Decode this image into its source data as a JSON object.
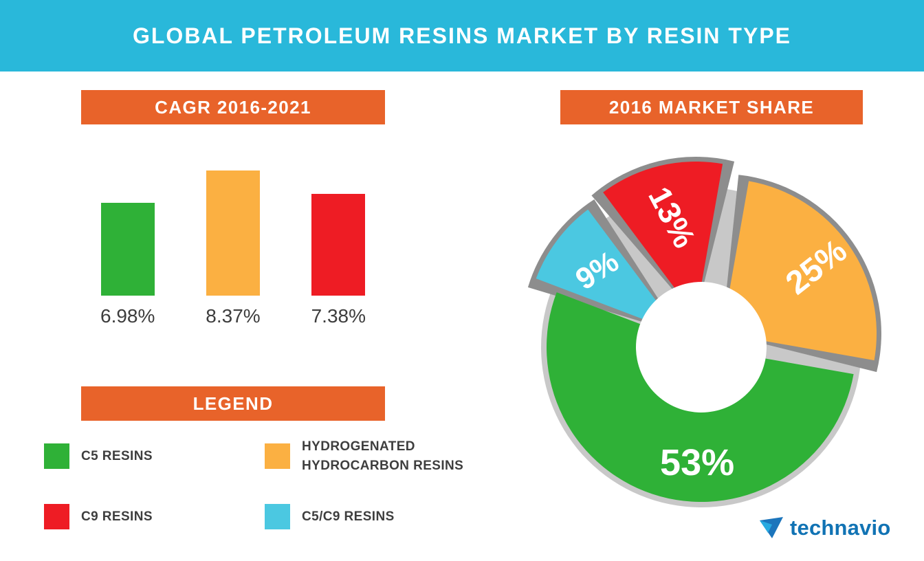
{
  "header": {
    "title": "GLOBAL PETROLEUM RESINS MARKET BY RESIN TYPE",
    "background": "#29b8da"
  },
  "theme": {
    "banner_background": "#e8632a",
    "header_background": "#29b8da"
  },
  "panels": {
    "cagr": {
      "title": "CAGR 2016-2021"
    },
    "market_share": {
      "title": "2016 MARKET SHARE"
    },
    "legend": {
      "title": "LEGEND"
    }
  },
  "legend": {
    "items": [
      {
        "label": "C5 RESINS",
        "color": "#2fb137"
      },
      {
        "label": "HYDROGENATED HYDROCARBON RESINS",
        "color": "#fbb042"
      },
      {
        "label": "C9 RESINS",
        "color": "#ee1c24"
      },
      {
        "label": "C5/C9 RESINS",
        "color": "#4bc8e1"
      }
    ]
  },
  "chart_data": [
    {
      "type": "bar",
      "title": "CAGR 2016-2021",
      "categories": [
        "C5 RESINS",
        "HYDROGENATED HYDROCARBON RESINS",
        "C9 RESINS"
      ],
      "values": [
        6.98,
        8.37,
        7.38
      ],
      "value_labels": [
        "6.98%",
        "8.37%",
        "7.38%"
      ],
      "colors": [
        "#2fb137",
        "#fbb042",
        "#ee1c24"
      ],
      "ylim": [
        3,
        9.85
      ],
      "grid": false,
      "axis_labels_visible": false
    },
    {
      "type": "pie",
      "title": "2016 MARKET SHARE",
      "start_angle": 10,
      "outer_radius": 225,
      "hole_radius": 95,
      "shadow_color": "#8d8d8d",
      "base_ring_color": "#c8c8c8",
      "slices": [
        {
          "label": "HYDROGENATED HYDROCARBON RESINS",
          "value": 25,
          "display": "25%",
          "color": "#fbb042",
          "explode": [
            30,
            -20
          ],
          "label_rotation": -38,
          "label_radius": 168,
          "label_size": 48
        },
        {
          "label": "C5 RESINS",
          "value": 53,
          "display": "53%",
          "color": "#2fb137",
          "explode": [
            0,
            0
          ],
          "label_rotation": 0,
          "label_radius": 168,
          "label_size": 54,
          "label_angle": 182
        },
        {
          "label": "C5/C9 RESINS",
          "value": 9,
          "display": "9%",
          "color": "#4bc8e1",
          "explode": [
            -30,
            -20
          ],
          "label_rotation": -33,
          "label_radius": 152,
          "label_size": 44
        },
        {
          "label": "C9 RESINS",
          "value": 13,
          "display": "13%",
          "color": "#ee1c24",
          "explode": [
            -8,
            -45
          ],
          "label_rotation": 62,
          "label_radius": 148,
          "label_size": 46
        }
      ]
    }
  ],
  "logo": {
    "text": "technavio",
    "color": "#1173b4"
  }
}
